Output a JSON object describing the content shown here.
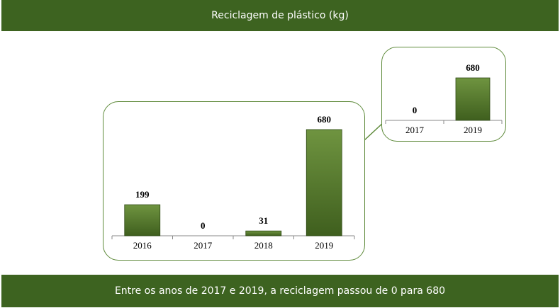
{
  "header": {
    "title": "Reciclagem de plástico (kg)"
  },
  "footer": {
    "text": "Entre os anos de 2017 e 2019, a reciclagem passou de 0 para 680"
  },
  "colors": {
    "banner": "#3d6320",
    "bar_top": "#6f9440",
    "bar_bottom": "#3f5f1e",
    "panel_border": "#5e8a3a"
  },
  "chart_data": [
    {
      "type": "bar",
      "categories": [
        "2016",
        "2017",
        "2018",
        "2019"
      ],
      "values": [
        199,
        0,
        31,
        680
      ],
      "ylim": [
        0,
        680
      ],
      "grid": false,
      "data_labels": true
    },
    {
      "type": "bar",
      "categories": [
        "2017",
        "2019"
      ],
      "values": [
        0,
        680
      ],
      "ylim": [
        0,
        680
      ],
      "grid": false,
      "data_labels": true
    }
  ]
}
